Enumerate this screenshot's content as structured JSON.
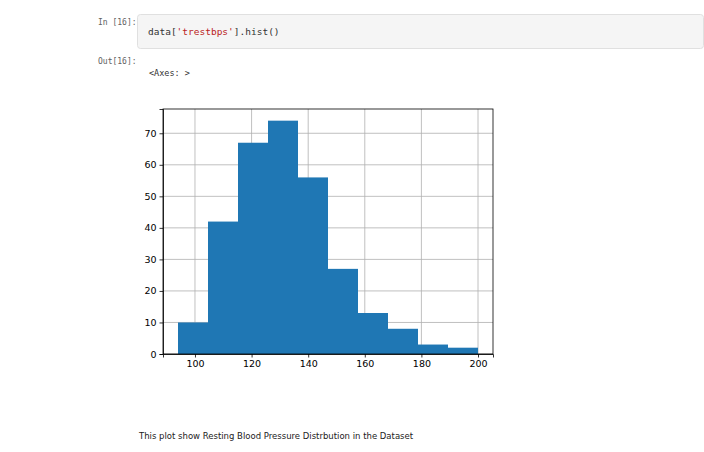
{
  "chart_data": {
    "type": "histogram",
    "bins": [
      94,
      104.6,
      115.2,
      125.8,
      136.4,
      147,
      157.6,
      168.2,
      178.8,
      189.4,
      200
    ],
    "values": [
      10,
      42,
      67,
      74,
      56,
      27,
      13,
      8,
      3,
      2
    ],
    "color": "#1f77b4",
    "xlim": [
      88.7,
      205.3
    ],
    "ylim": [
      0,
      77.7
    ],
    "xticks": [
      100,
      120,
      140,
      160,
      180,
      200
    ],
    "yticks": [
      0,
      10,
      20,
      30,
      40,
      50,
      60,
      70
    ],
    "grid": true
  },
  "notebook": {
    "input_prompt": "In [16]:",
    "code": "data['trestbps'].hist()",
    "output_prompt": "Out[16]:",
    "output_repr": "<Axes: >",
    "caption": "This plot show Resting Blood Pressure Distrbution in the Dataset"
  }
}
